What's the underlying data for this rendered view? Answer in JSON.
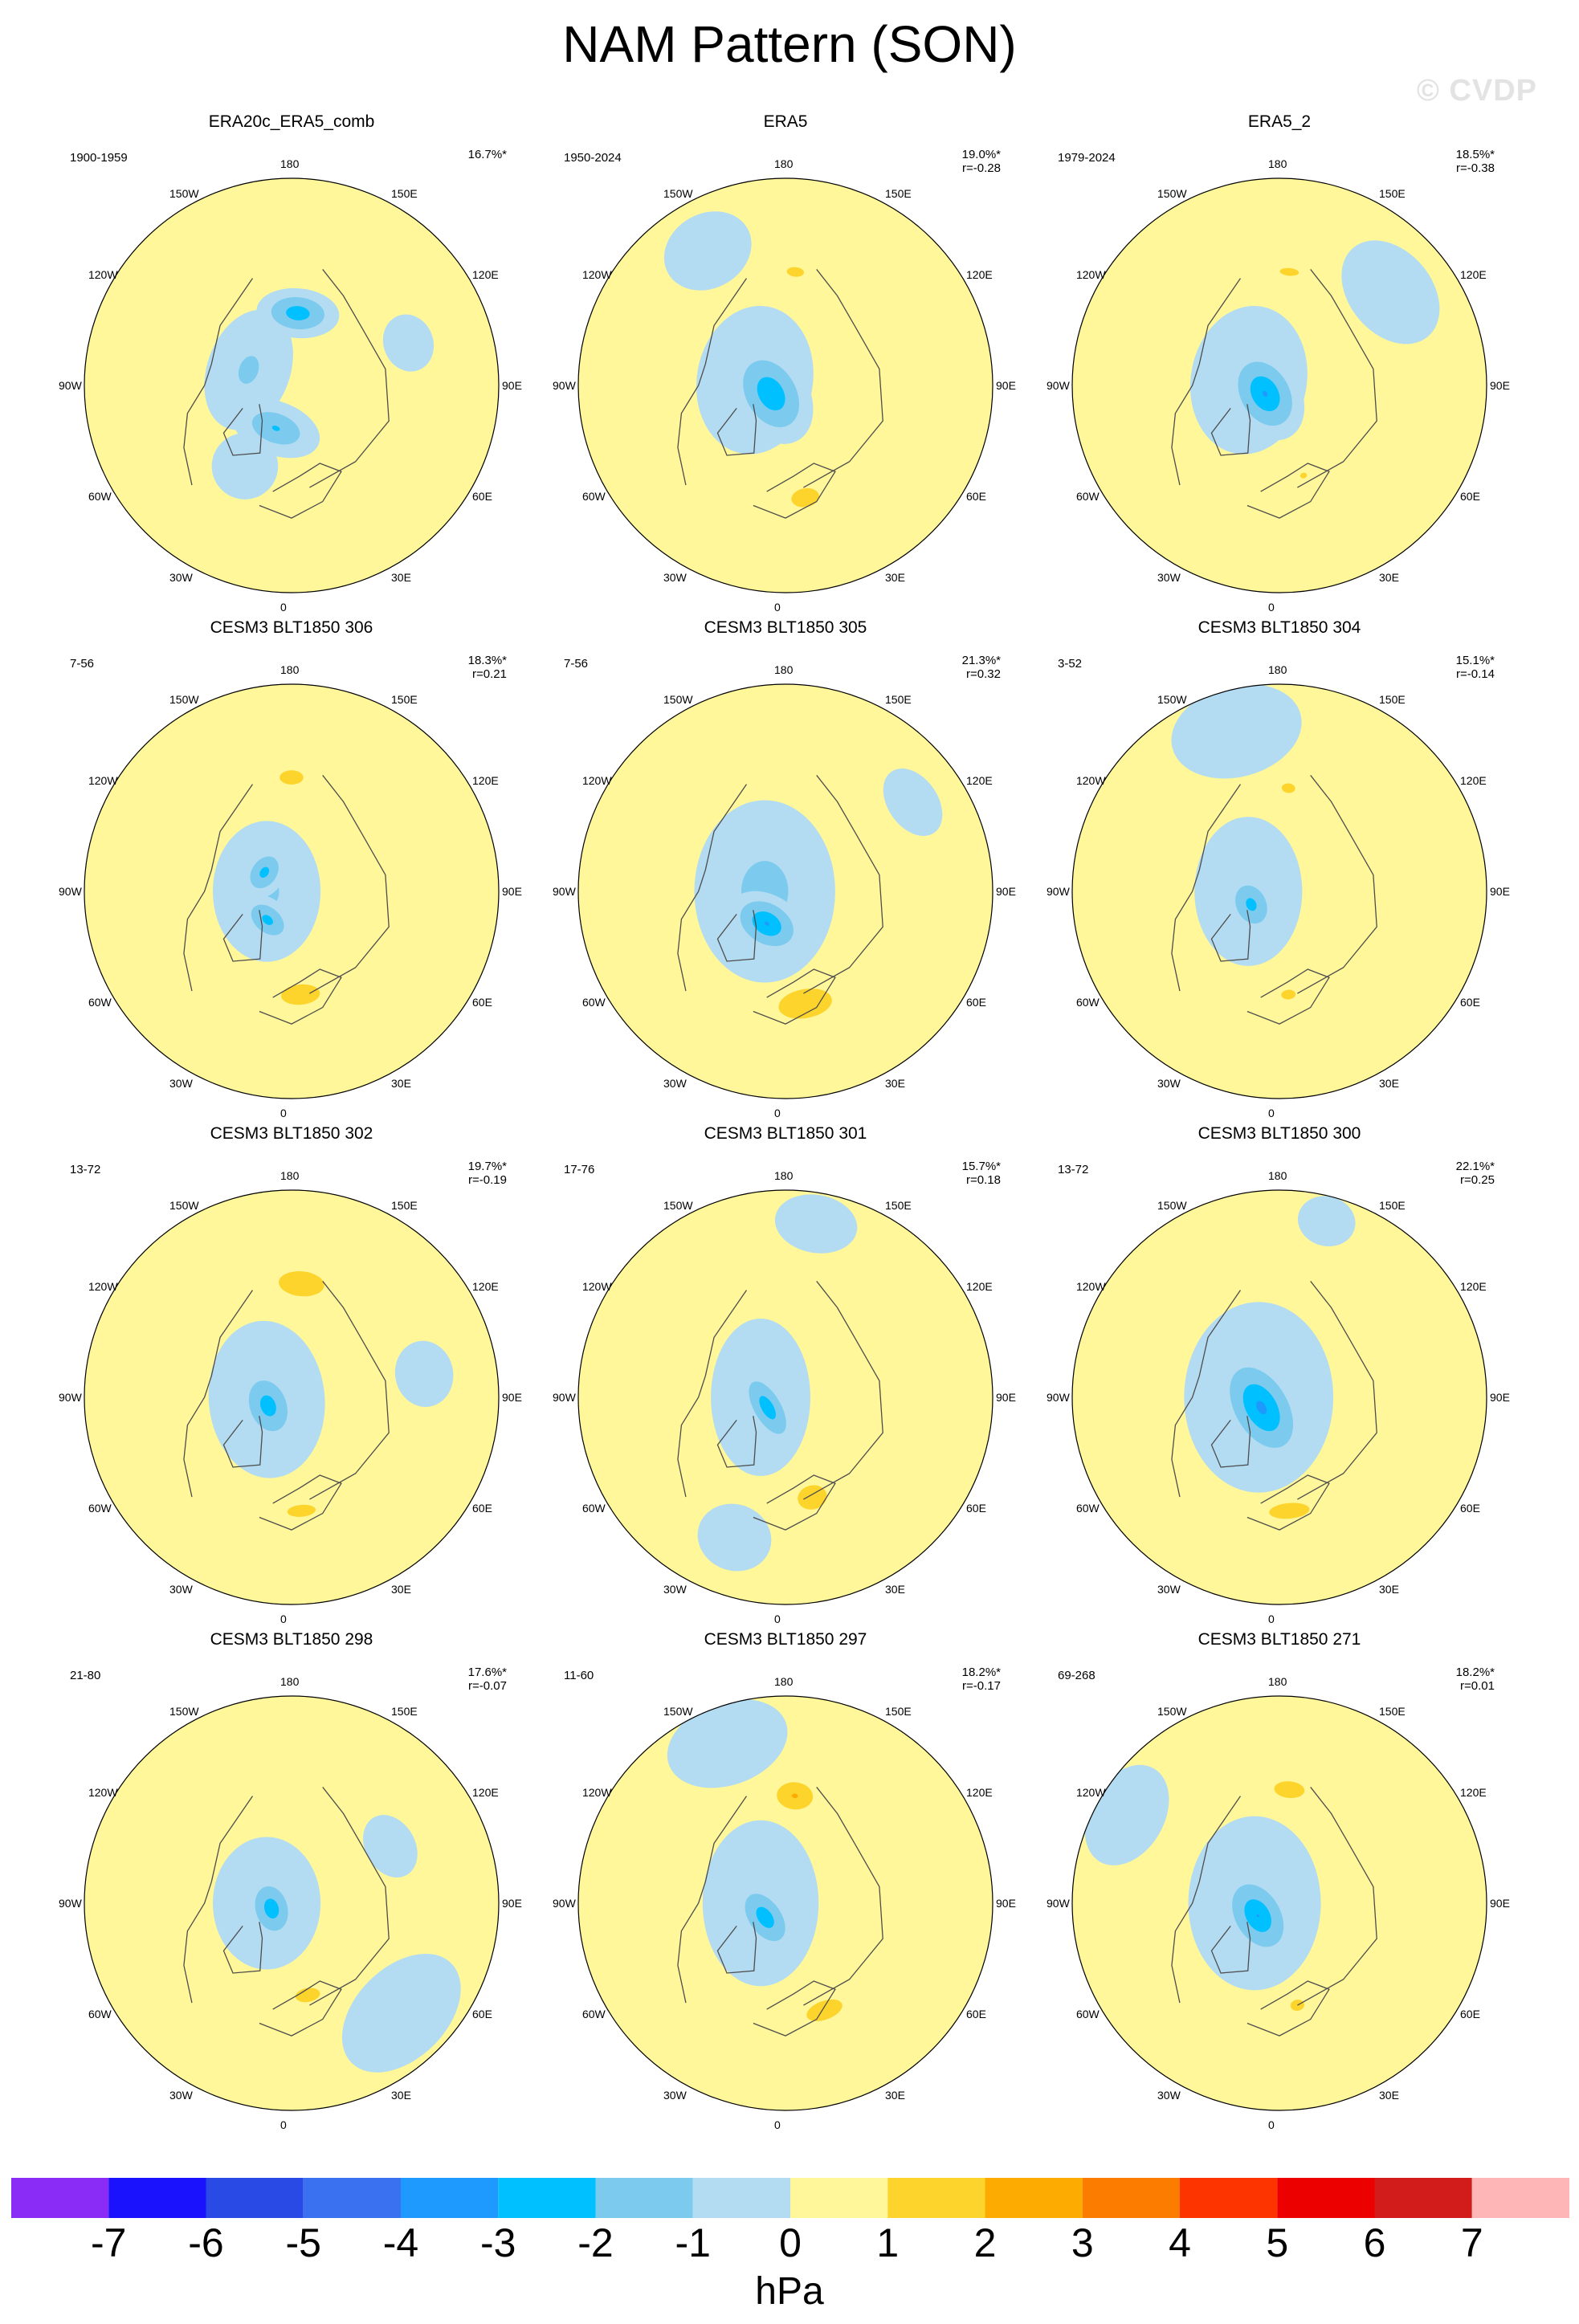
{
  "header": {
    "title": "NAM Pattern (SON)",
    "watermark": "© CVDP"
  },
  "lon_labels": [
    "180",
    "150E",
    "120E",
    "90E",
    "60E",
    "30E",
    "0",
    "30W",
    "60W",
    "90W",
    "120W",
    "150W"
  ],
  "colors": {
    "positive": [
      "#fff799",
      "#fdd42c",
      "#fdab00",
      "#fc7c00",
      "#fd3300",
      "#ec0000",
      "#d21c1c",
      "#ffb6b6"
    ],
    "negative": [
      "#b3dcf2",
      "#7ccbee",
      "#00c0ff",
      "#1e9aff",
      "#3a71f0",
      "#2a4ae6",
      "#1a12fc",
      "#8a2bf6"
    ],
    "land": "#4d4d4d"
  },
  "chart_data": {
    "type": "contour-map",
    "units": "hPa",
    "colorbar": {
      "levels": [
        -7,
        -6,
        -5,
        -4,
        -3,
        -2,
        -1,
        0,
        1,
        2,
        3,
        4,
        5,
        6,
        7
      ],
      "tick_labels": [
        "-7",
        "-6",
        "-5",
        "-4",
        "-3",
        "-2",
        "-1",
        "0",
        "1",
        "2",
        "3",
        "4",
        "5",
        "6",
        "7"
      ],
      "colors": [
        "#8a2bf6",
        "#1a12fc",
        "#2a4ae6",
        "#3a71f0",
        "#1e9aff",
        "#00c0ff",
        "#7ccbee",
        "#b3dcf2",
        "#fff799",
        "#fdd42c",
        "#fdab00",
        "#fc7c00",
        "#fd3300",
        "#ec0000",
        "#d21c1c",
        "#ffb6b6"
      ]
    },
    "panels": [
      {
        "title": "ERA20c_ERA5_comb",
        "years": "1900-1959",
        "pct": "16.7%*",
        "r": "",
        "features": [
          {
            "lon": 175,
            "r": 0.35,
            "v": -2.8,
            "a": 0.2,
            "b": 0.12
          },
          {
            "lon": 340,
            "r": 0.22,
            "v": -2.2,
            "a": 0.22,
            "b": 0.13
          },
          {
            "lon": 250,
            "r": 0.22,
            "v": -1.3,
            "a": 0.3,
            "b": 0.2
          },
          {
            "lon": 110,
            "r": 0.6,
            "v": -0.8,
            "a": 0.14,
            "b": 0.12
          },
          {
            "lon": 330,
            "r": 0.45,
            "v": -1.0,
            "a": 0.16,
            "b": 0.16
          },
          {
            "lon": 0,
            "r": 0.4,
            "v": 0.6,
            "a": 0.16,
            "b": 0.12
          }
        ]
      },
      {
        "title": "ERA5",
        "years": "1950-2024",
        "pct": "19.0%*",
        "r": "r=-0.28",
        "features": [
          {
            "lon": 300,
            "r": 0.08,
            "v": -3.0,
            "a": 0.26,
            "b": 0.18
          },
          {
            "lon": 260,
            "r": 0.15,
            "v": -1.2,
            "a": 0.36,
            "b": 0.28
          },
          {
            "lon": 175,
            "r": 0.55,
            "v": 1.3,
            "a": 0.18,
            "b": 0.1
          },
          {
            "lon": 10,
            "r": 0.55,
            "v": 1.6,
            "a": 0.18,
            "b": 0.12
          },
          {
            "lon": 210,
            "r": 0.75,
            "v": -0.7,
            "a": 0.22,
            "b": 0.18
          }
        ]
      },
      {
        "title": "ERA5_2",
        "years": "1979-2024",
        "pct": "18.5%*",
        "r": "r=-0.38",
        "features": [
          {
            "lon": 300,
            "r": 0.08,
            "v": -3.2,
            "a": 0.24,
            "b": 0.17
          },
          {
            "lon": 260,
            "r": 0.15,
            "v": -1.2,
            "a": 0.36,
            "b": 0.28
          },
          {
            "lon": 175,
            "r": 0.55,
            "v": 1.3,
            "a": 0.2,
            "b": 0.08
          },
          {
            "lon": 15,
            "r": 0.45,
            "v": 1.2,
            "a": 0.1,
            "b": 0.08
          },
          {
            "lon": 130,
            "r": 0.7,
            "v": -0.7,
            "a": 0.28,
            "b": 0.2
          }
        ]
      },
      {
        "title": "CESM3 BLT1850 306",
        "years": "7-56",
        "pct": "18.3%*",
        "r": "r=0.21",
        "features": [
          {
            "lon": 235,
            "r": 0.16,
            "v": -2.5,
            "a": 0.14,
            "b": 0.1
          },
          {
            "lon": 320,
            "r": 0.18,
            "v": -2.5,
            "a": 0.15,
            "b": 0.1
          },
          {
            "lon": 270,
            "r": 0.12,
            "v": -1.3,
            "a": 0.34,
            "b": 0.26
          },
          {
            "lon": 180,
            "r": 0.55,
            "v": 1.4,
            "a": 0.2,
            "b": 0.12
          },
          {
            "lon": 5,
            "r": 0.5,
            "v": 1.6,
            "a": 0.25,
            "b": 0.13
          }
        ]
      },
      {
        "title": "CESM3 BLT1850 305",
        "years": "7-56",
        "pct": "21.3%*",
        "r": "r=0.32",
        "features": [
          {
            "lon": 330,
            "r": 0.18,
            "v": -3.2,
            "a": 0.2,
            "b": 0.14
          },
          {
            "lon": 270,
            "r": 0.1,
            "v": -1.5,
            "a": 0.44,
            "b": 0.34
          },
          {
            "lon": 10,
            "r": 0.55,
            "v": 2.0,
            "a": 0.26,
            "b": 0.14
          },
          {
            "lon": 175,
            "r": 0.58,
            "v": 1.0,
            "a": 0.1,
            "b": 0.07
          },
          {
            "lon": 125,
            "r": 0.75,
            "v": -0.7,
            "a": 0.18,
            "b": 0.12
          }
        ]
      },
      {
        "title": "CESM3 BLT1850 304",
        "years": "3-52",
        "pct": "15.1%*",
        "r": "r=-0.14",
        "features": [
          {
            "lon": 295,
            "r": 0.15,
            "v": -2.5,
            "a": 0.16,
            "b": 0.12
          },
          {
            "lon": 270,
            "r": 0.15,
            "v": -1.3,
            "a": 0.36,
            "b": 0.26
          },
          {
            "lon": 175,
            "r": 0.5,
            "v": 1.3,
            "a": 0.14,
            "b": 0.1
          },
          {
            "lon": 5,
            "r": 0.5,
            "v": 1.3,
            "a": 0.15,
            "b": 0.1
          },
          {
            "lon": 195,
            "r": 0.8,
            "v": -0.8,
            "a": 0.32,
            "b": 0.22
          }
        ]
      },
      {
        "title": "CESM3 BLT1850 302",
        "years": "13-72",
        "pct": "19.7%*",
        "r": "r=-0.19",
        "features": [
          {
            "lon": 290,
            "r": 0.12,
            "v": -2.7,
            "a": 0.2,
            "b": 0.14
          },
          {
            "lon": 275,
            "r": 0.12,
            "v": -1.3,
            "a": 0.38,
            "b": 0.28
          },
          {
            "lon": 175,
            "r": 0.55,
            "v": 2.0,
            "a": 0.22,
            "b": 0.12
          },
          {
            "lon": 5,
            "r": 0.55,
            "v": 1.4,
            "a": 0.24,
            "b": 0.1
          },
          {
            "lon": 100,
            "r": 0.65,
            "v": -0.6,
            "a": 0.16,
            "b": 0.14
          }
        ]
      },
      {
        "title": "CESM3 BLT1850 301",
        "years": "17-76",
        "pct": "15.7%*",
        "r": "r=0.18",
        "features": [
          {
            "lon": 300,
            "r": 0.1,
            "v": -2.8,
            "a": 0.22,
            "b": 0.1
          },
          {
            "lon": 270,
            "r": 0.12,
            "v": -1.3,
            "a": 0.38,
            "b": 0.24
          },
          {
            "lon": 15,
            "r": 0.5,
            "v": 1.8,
            "a": 0.16,
            "b": 0.13
          },
          {
            "lon": 170,
            "r": 0.85,
            "v": -0.7,
            "a": 0.2,
            "b": 0.14
          },
          {
            "lon": 340,
            "r": 0.72,
            "v": -0.8,
            "a": 0.18,
            "b": 0.16
          }
        ]
      },
      {
        "title": "CESM3 BLT1850 300",
        "years": "13-72",
        "pct": "22.1%*",
        "r": "r=0.25",
        "features": [
          {
            "lon": 300,
            "r": 0.1,
            "v": -3.4,
            "a": 0.3,
            "b": 0.18
          },
          {
            "lon": 270,
            "r": 0.1,
            "v": -1.5,
            "a": 0.46,
            "b": 0.36
          },
          {
            "lon": 5,
            "r": 0.55,
            "v": 1.6,
            "a": 0.26,
            "b": 0.1
          },
          {
            "lon": 170,
            "r": 0.62,
            "v": 0.8,
            "a": 0.08,
            "b": 0.06
          },
          {
            "lon": 165,
            "r": 0.88,
            "v": -0.7,
            "a": 0.14,
            "b": 0.12
          }
        ]
      },
      {
        "title": "CESM3 BLT1850 298",
        "years": "21-80",
        "pct": "17.6%*",
        "r": "r=-0.07",
        "features": [
          {
            "lon": 285,
            "r": 0.1,
            "v": -2.8,
            "a": 0.17,
            "b": 0.12
          },
          {
            "lon": 270,
            "r": 0.12,
            "v": -1.3,
            "a": 0.32,
            "b": 0.26
          },
          {
            "lon": 10,
            "r": 0.45,
            "v": 1.5,
            "a": 0.18,
            "b": 0.1
          },
          {
            "lon": 45,
            "r": 0.75,
            "v": -0.9,
            "a": 0.34,
            "b": 0.22
          },
          {
            "lon": 120,
            "r": 0.55,
            "v": -0.8,
            "a": 0.16,
            "b": 0.12
          }
        ]
      },
      {
        "title": "CESM3 BLT1850 297",
        "years": "11-60",
        "pct": "18.2%*",
        "r": "r=-0.17",
        "features": [
          {
            "lon": 305,
            "r": 0.12,
            "v": -2.8,
            "a": 0.2,
            "b": 0.12
          },
          {
            "lon": 270,
            "r": 0.12,
            "v": -1.3,
            "a": 0.4,
            "b": 0.28
          },
          {
            "lon": 175,
            "r": 0.52,
            "v": 2.2,
            "a": 0.16,
            "b": 0.12
          },
          {
            "lon": 20,
            "r": 0.55,
            "v": 1.6,
            "a": 0.24,
            "b": 0.12
          },
          {
            "lon": 200,
            "r": 0.82,
            "v": -0.8,
            "a": 0.3,
            "b": 0.2
          }
        ]
      },
      {
        "title": "CESM3 BLT1850 271",
        "years": "69-268",
        "pct": "18.2%*",
        "r": "r=0.01",
        "features": [
          {
            "lon": 300,
            "r": 0.12,
            "v": -3.1,
            "a": 0.24,
            "b": 0.16
          },
          {
            "lon": 270,
            "r": 0.12,
            "v": -1.4,
            "a": 0.42,
            "b": 0.32
          },
          {
            "lon": 175,
            "r": 0.55,
            "v": 1.5,
            "a": 0.22,
            "b": 0.12
          },
          {
            "lon": 10,
            "r": 0.5,
            "v": 1.5,
            "a": 0.1,
            "b": 0.08
          },
          {
            "lon": 240,
            "r": 0.85,
            "v": -0.7,
            "a": 0.26,
            "b": 0.18
          }
        ]
      }
    ]
  }
}
